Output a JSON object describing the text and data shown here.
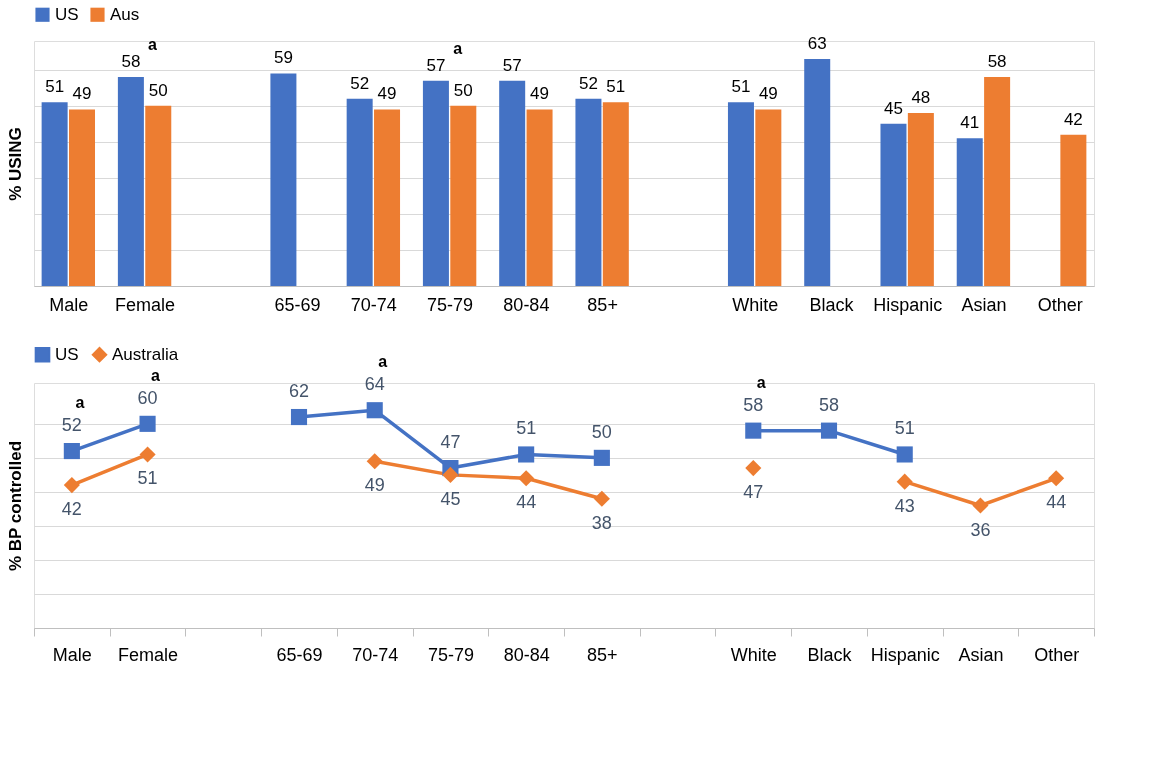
{
  "chart_data": [
    {
      "type": "bar",
      "ylabel": "% USING",
      "categories": [
        "Male",
        "Female",
        null,
        "65-69",
        "70-74",
        "75-79",
        "80-84",
        "85+",
        null,
        "White",
        "Black",
        "Hispanic",
        "Asian",
        "Other"
      ],
      "series": [
        {
          "name": "US",
          "color": "#4472c4",
          "values": [
            51,
            58,
            null,
            59,
            52,
            57,
            57,
            52,
            null,
            51,
            63,
            45,
            41,
            null
          ]
        },
        {
          "name": "Aus",
          "color": "#ed7d31",
          "values": [
            49,
            50,
            null,
            null,
            49,
            50,
            49,
            51,
            null,
            49,
            null,
            48,
            58,
            42
          ]
        }
      ],
      "ylim": [
        0,
        68
      ],
      "yticks": [
        {
          "value": 0,
          "label": null
        },
        {
          "value": 10,
          "label": null
        },
        {
          "value": 20,
          "label": null
        },
        {
          "value": 30,
          "label": null
        },
        {
          "value": 40,
          "label": null
        },
        {
          "value": 50,
          "label": null
        },
        {
          "value": 60,
          "label": null
        }
      ],
      "grid": "y",
      "tick_labels": "x",
      "legend": "top",
      "data_labels": true,
      "annotations": [
        {
          "text": "a",
          "x": "Female",
          "y": 58
        },
        {
          "text": "a",
          "x": "75-79",
          "y": 57
        }
      ]
    },
    {
      "type": "line",
      "ylabel": "% BP controlled",
      "categories": [
        "Male",
        "Female",
        null,
        "65-69",
        "70-74",
        "75-79",
        "80-84",
        "85+",
        null,
        "White",
        "Black",
        "Hispanic",
        "Asian",
        "Other"
      ],
      "series": [
        {
          "name": "US",
          "color": "#4472c4",
          "marker": "square",
          "values": [
            52,
            60,
            null,
            62,
            64,
            47,
            51,
            50,
            null,
            58,
            58,
            51,
            null,
            null
          ]
        },
        {
          "name": "Australia",
          "color": "#ed7d31",
          "marker": "diamond",
          "values": [
            42,
            51,
            null,
            null,
            49,
            45,
            44,
            38,
            null,
            47,
            null,
            43,
            36,
            44
          ]
        }
      ],
      "ylim": [
        0,
        72
      ],
      "yticks": [
        {
          "value": 0,
          "label": null
        },
        {
          "value": 10,
          "label": null
        },
        {
          "value": 20,
          "label": null
        },
        {
          "value": 30,
          "label": null
        },
        {
          "value": 40,
          "label": null
        },
        {
          "value": 50,
          "label": null
        },
        {
          "value": 60,
          "label": null
        }
      ],
      "grid": "y",
      "tick_labels": "x",
      "legend": "top",
      "data_labels": true,
      "line_style": "solid",
      "annotations": [
        {
          "text": "a",
          "x": "Male",
          "y": 52
        },
        {
          "text": "a",
          "x": "Female",
          "y": 60
        },
        {
          "text": "a",
          "x": "70-74",
          "y": 64
        },
        {
          "text": "a",
          "x": "White",
          "y": 58
        }
      ]
    }
  ]
}
